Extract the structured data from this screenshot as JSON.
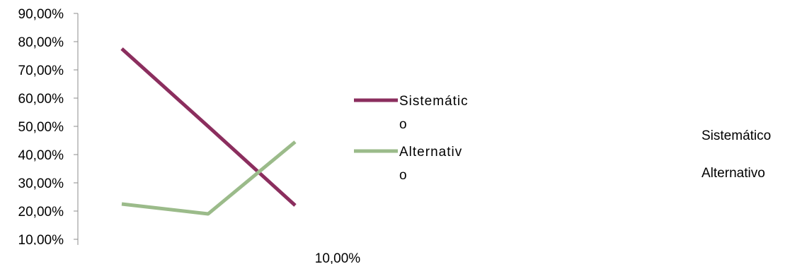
{
  "chart_data": {
    "type": "line",
    "categories": [
      "",
      "",
      ""
    ],
    "series": [
      {
        "name": "Sistemático",
        "values": [
          77.5,
          50.0,
          22.0
        ],
        "color": "#8B2E5E"
      },
      {
        "name": "Alternativo",
        "values": [
          22.5,
          19.0,
          44.5
        ],
        "color": "#9BBB8A"
      }
    ],
    "yticks": [
      "90,00%",
      "80,00%",
      "70,00%",
      "60,00%",
      "50,00%",
      "40,00%",
      "30,00%",
      "20,00%",
      "10,00%"
    ],
    "ylim": [
      10,
      90
    ],
    "x_axis_label_text": "10,00%",
    "legend": {
      "placement": "right",
      "entries": [
        {
          "line1": "Sistemátic",
          "line2": "o"
        },
        {
          "line1": "Alternativ",
          "line2": "o"
        }
      ]
    },
    "side_labels": [
      "Sistemático",
      "Alternativo"
    ],
    "grid": false
  }
}
